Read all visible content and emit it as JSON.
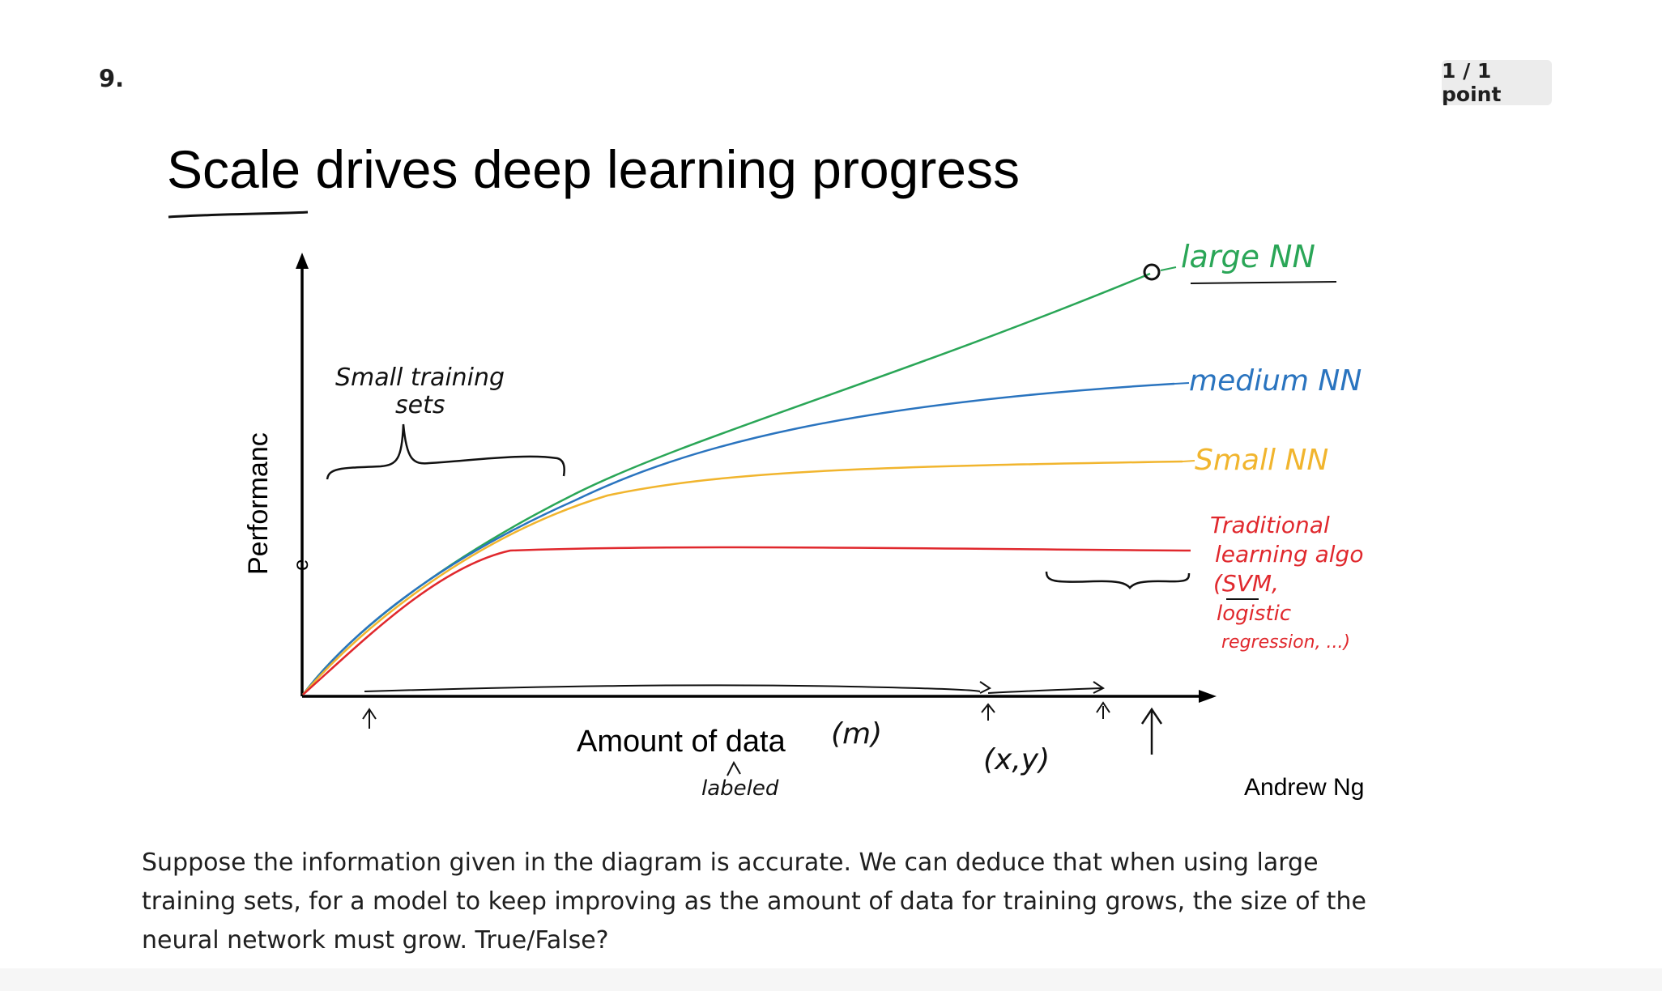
{
  "question": {
    "number": "9.",
    "points": "1 / 1 point",
    "text": "Suppose the information given in the diagram is accurate. We can deduce that when using large training sets, for a model to keep improving as the amount of data for training grows, the size of the neural network must grow. True/False?"
  },
  "slide": {
    "title": "Scale drives deep learning progress",
    "credit": "Andrew Ng",
    "y_axis_label": "Performanc",
    "y_axis_extra": "e",
    "x_axis_label": "Amount of data",
    "annotations": {
      "m": "(m)",
      "labeled": "labeled",
      "xy": "(x,y)",
      "small_training_sets": [
        "Small training",
        "sets"
      ],
      "large_nn": "large NN",
      "medium_nn": "medium NN",
      "small_nn": "Small NN",
      "traditional": [
        "Traditional",
        "learning algo",
        "(SVM,",
        "logistic",
        "regression, ...)"
      ]
    },
    "colors": {
      "large_nn": "#2aa657",
      "medium_nn": "#2a74bf",
      "small_nn": "#f1b52e",
      "traditional": "#e0282d",
      "ink": "#111111"
    }
  }
}
